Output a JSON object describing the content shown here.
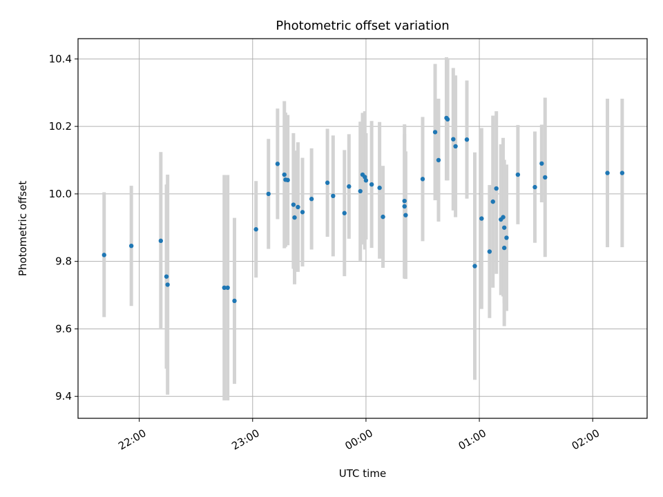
{
  "chart_data": {
    "type": "scatter",
    "title": "Photometric offset variation",
    "xlabel": "UTC time",
    "ylabel": "Photometric offset",
    "x_unit": "hours (UTC, offset from 00:00; negative = previous day)",
    "xlim": [
      -2.54,
      2.48
    ],
    "ylim": [
      9.335,
      10.46
    ],
    "xticks": [
      -2,
      -1,
      0,
      1,
      2
    ],
    "xtick_labels": [
      "22:00",
      "23:00",
      "00:00",
      "01:00",
      "02:00"
    ],
    "yticks": [
      9.4,
      9.6,
      9.8,
      10.0,
      10.2,
      10.4
    ],
    "ytick_labels": [
      "9.4",
      "9.6",
      "9.8",
      "10.0",
      "10.2",
      "10.4"
    ],
    "grid": true,
    "point_color": "#1f77b4",
    "errorbar_color": "#d3d3d3",
    "points": [
      {
        "x": -2.31,
        "y": 9.819,
        "low": 9.635,
        "high": 10.005
      },
      {
        "x": -2.07,
        "y": 9.846,
        "low": 9.668,
        "high": 10.024
      },
      {
        "x": -1.81,
        "y": 9.861,
        "low": 9.598,
        "high": 10.124
      },
      {
        "x": -1.76,
        "y": 9.755,
        "low": 9.482,
        "high": 10.028
      },
      {
        "x": -1.75,
        "y": 9.731,
        "low": 9.405,
        "high": 10.057
      },
      {
        "x": -1.25,
        "y": 9.722,
        "low": 9.388,
        "high": 10.056
      },
      {
        "x": -1.22,
        "y": 9.722,
        "low": 9.388,
        "high": 10.056
      },
      {
        "x": -1.16,
        "y": 9.683,
        "low": 9.437,
        "high": 9.929
      },
      {
        "x": -0.97,
        "y": 9.895,
        "low": 9.752,
        "high": 10.038
      },
      {
        "x": -0.86,
        "y": 10.0,
        "low": 9.837,
        "high": 10.163
      },
      {
        "x": -0.78,
        "y": 10.089,
        "low": 9.925,
        "high": 10.253
      },
      {
        "x": -0.72,
        "y": 10.057,
        "low": 9.839,
        "high": 10.275
      },
      {
        "x": -0.71,
        "y": 10.042,
        "low": 9.843,
        "high": 10.241
      },
      {
        "x": -0.69,
        "y": 10.041,
        "low": 9.848,
        "high": 10.234
      },
      {
        "x": -0.64,
        "y": 9.968,
        "low": 9.778,
        "high": 10.18
      },
      {
        "x": -0.63,
        "y": 9.93,
        "low": 9.732,
        "high": 10.128
      },
      {
        "x": -0.6,
        "y": 9.961,
        "low": 9.769,
        "high": 10.153
      },
      {
        "x": -0.56,
        "y": 9.946,
        "low": 9.785,
        "high": 10.107
      },
      {
        "x": -0.48,
        "y": 9.985,
        "low": 9.835,
        "high": 10.135
      },
      {
        "x": -0.34,
        "y": 10.033,
        "low": 9.873,
        "high": 10.193
      },
      {
        "x": -0.29,
        "y": 9.994,
        "low": 9.815,
        "high": 10.173
      },
      {
        "x": -0.19,
        "y": 9.943,
        "low": 9.756,
        "high": 10.13
      },
      {
        "x": -0.15,
        "y": 10.022,
        "low": 9.867,
        "high": 10.177
      },
      {
        "x": -0.05,
        "y": 10.008,
        "low": 9.802,
        "high": 10.214
      },
      {
        "x": -0.03,
        "y": 10.057,
        "low": 9.85,
        "high": 10.24
      },
      {
        "x": -0.01,
        "y": 10.05,
        "low": 9.835,
        "high": 10.245
      },
      {
        "x": 0.0,
        "y": 10.04,
        "low": 9.865,
        "high": 10.18
      },
      {
        "x": 0.05,
        "y": 10.028,
        "low": 9.84,
        "high": 10.216
      },
      {
        "x": 0.12,
        "y": 10.018,
        "low": 9.808,
        "high": 10.213
      },
      {
        "x": 0.15,
        "y": 9.932,
        "low": 9.781,
        "high": 10.083
      },
      {
        "x": 0.34,
        "y": 9.979,
        "low": 9.752,
        "high": 10.206
      },
      {
        "x": 0.34,
        "y": 9.963,
        "low": 9.749,
        "high": 10.177
      },
      {
        "x": 0.35,
        "y": 9.937,
        "low": 9.748,
        "high": 10.126
      },
      {
        "x": 0.5,
        "y": 10.044,
        "low": 9.86,
        "high": 10.228
      },
      {
        "x": 0.61,
        "y": 10.183,
        "low": 9.981,
        "high": 10.385
      },
      {
        "x": 0.64,
        "y": 10.1,
        "low": 9.918,
        "high": 10.282
      },
      {
        "x": 0.71,
        "y": 10.225,
        "low": 10.04,
        "high": 10.405
      },
      {
        "x": 0.72,
        "y": 10.221,
        "low": 10.04,
        "high": 10.402
      },
      {
        "x": 0.77,
        "y": 10.162,
        "low": 9.951,
        "high": 10.373
      },
      {
        "x": 0.79,
        "y": 10.141,
        "low": 9.931,
        "high": 10.351
      },
      {
        "x": 0.89,
        "y": 10.161,
        "low": 9.986,
        "high": 10.336
      },
      {
        "x": 0.96,
        "y": 9.786,
        "low": 9.449,
        "high": 10.123
      },
      {
        "x": 1.02,
        "y": 9.927,
        "low": 9.659,
        "high": 10.195
      },
      {
        "x": 1.09,
        "y": 9.829,
        "low": 9.632,
        "high": 10.026
      },
      {
        "x": 1.12,
        "y": 9.977,
        "low": 9.722,
        "high": 10.232
      },
      {
        "x": 1.15,
        "y": 10.016,
        "low": 9.763,
        "high": 10.245
      },
      {
        "x": 1.19,
        "y": 9.924,
        "low": 9.7,
        "high": 10.147
      },
      {
        "x": 1.21,
        "y": 9.931,
        "low": 9.696,
        "high": 10.166
      },
      {
        "x": 1.22,
        "y": 9.9,
        "low": 9.675,
        "high": 10.101
      },
      {
        "x": 1.22,
        "y": 9.84,
        "low": 9.608,
        "high": 10.072
      },
      {
        "x": 1.24,
        "y": 9.87,
        "low": 9.653,
        "high": 10.087
      },
      {
        "x": 1.34,
        "y": 10.057,
        "low": 9.91,
        "high": 10.204
      },
      {
        "x": 1.49,
        "y": 10.02,
        "low": 9.855,
        "high": 10.185
      },
      {
        "x": 1.55,
        "y": 10.09,
        "low": 9.975,
        "high": 10.205
      },
      {
        "x": 1.58,
        "y": 10.049,
        "low": 9.813,
        "high": 10.285
      },
      {
        "x": 2.13,
        "y": 10.062,
        "low": 9.842,
        "high": 10.282
      },
      {
        "x": 2.26,
        "y": 10.062,
        "low": 9.842,
        "high": 10.282
      }
    ]
  }
}
